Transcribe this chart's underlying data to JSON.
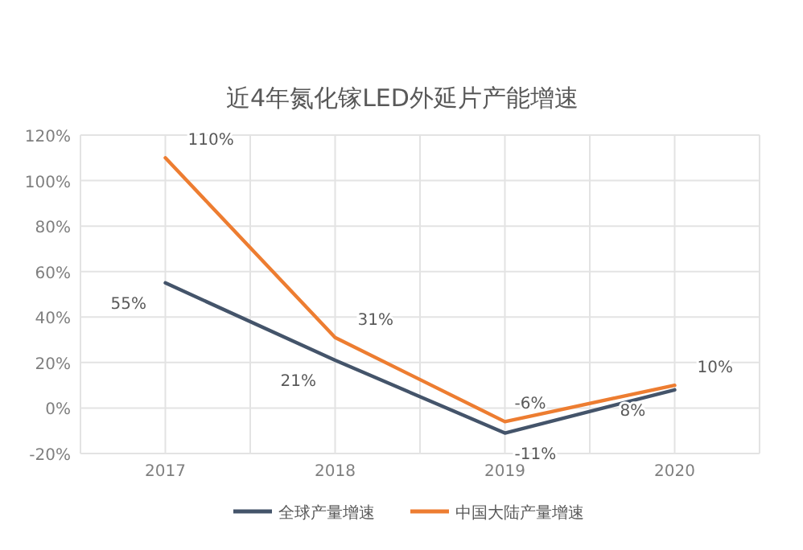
{
  "chart_data": {
    "type": "line",
    "title": "近4年氮化镓LED外延片产能增速",
    "categories": [
      "2017",
      "2018",
      "2019",
      "2020"
    ],
    "series": [
      {
        "name": "全球产量增速",
        "color": "#44546a",
        "values": [
          55,
          21,
          -11,
          8
        ],
        "value_labels": [
          "55%",
          "21%",
          "-11%",
          "8%"
        ]
      },
      {
        "name": "中国大陆产量增速",
        "color": "#ed7d31",
        "values": [
          110,
          31,
          -6,
          10
        ],
        "value_labels": [
          "110%",
          "31%",
          "-6%",
          "10%"
        ]
      }
    ],
    "ylim": [
      -20,
      120
    ],
    "yticks": [
      {
        "value": -20,
        "label": "-20%"
      },
      {
        "value": 0,
        "label": "0%"
      },
      {
        "value": 20,
        "label": "20%"
      },
      {
        "value": 40,
        "label": "40%"
      },
      {
        "value": 60,
        "label": "60%"
      },
      {
        "value": 80,
        "label": "80%"
      },
      {
        "value": 100,
        "label": "100%"
      },
      {
        "value": 120,
        "label": "120%"
      }
    ],
    "grid": true,
    "legend": "bottom",
    "marker": "none",
    "line_style": "solid"
  }
}
